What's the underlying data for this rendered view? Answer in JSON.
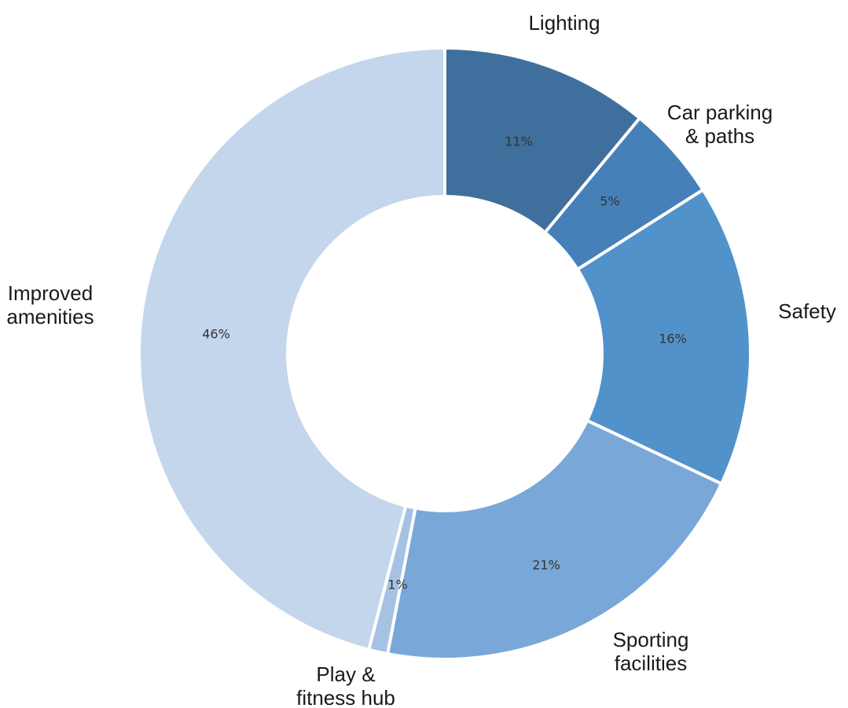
{
  "chart_data": {
    "type": "pie",
    "donut": true,
    "start_angle_deg": 0,
    "direction": "clockwise",
    "slices": [
      {
        "name": "Lighting",
        "label_lines": [
          "Lighting"
        ],
        "value": 11,
        "value_label": "11%",
        "color": "#3f6f9c"
      },
      {
        "name": "Car parking & paths",
        "label_lines": [
          "Car parking",
          "& paths"
        ],
        "value": 5,
        "value_label": "5%",
        "color": "#4680b8"
      },
      {
        "name": "Safety",
        "label_lines": [
          "Safety"
        ],
        "value": 16,
        "value_label": "16%",
        "color": "#5292cb"
      },
      {
        "name": "Sporting facilities",
        "label_lines": [
          "Sporting",
          "facilities"
        ],
        "value": 21,
        "value_label": "21%",
        "color": "#79a8d8"
      },
      {
        "name": "Play & fitness hub",
        "label_lines": [
          "Play &",
          "fitness hub"
        ],
        "value": 1,
        "value_label": "1%",
        "color": "#a6c2e3"
      },
      {
        "name": "Improved amenities",
        "label_lines": [
          "Improved",
          "amenities"
        ],
        "value": 46,
        "value_label": "46%",
        "color": "#c4d6ec"
      }
    ]
  }
}
